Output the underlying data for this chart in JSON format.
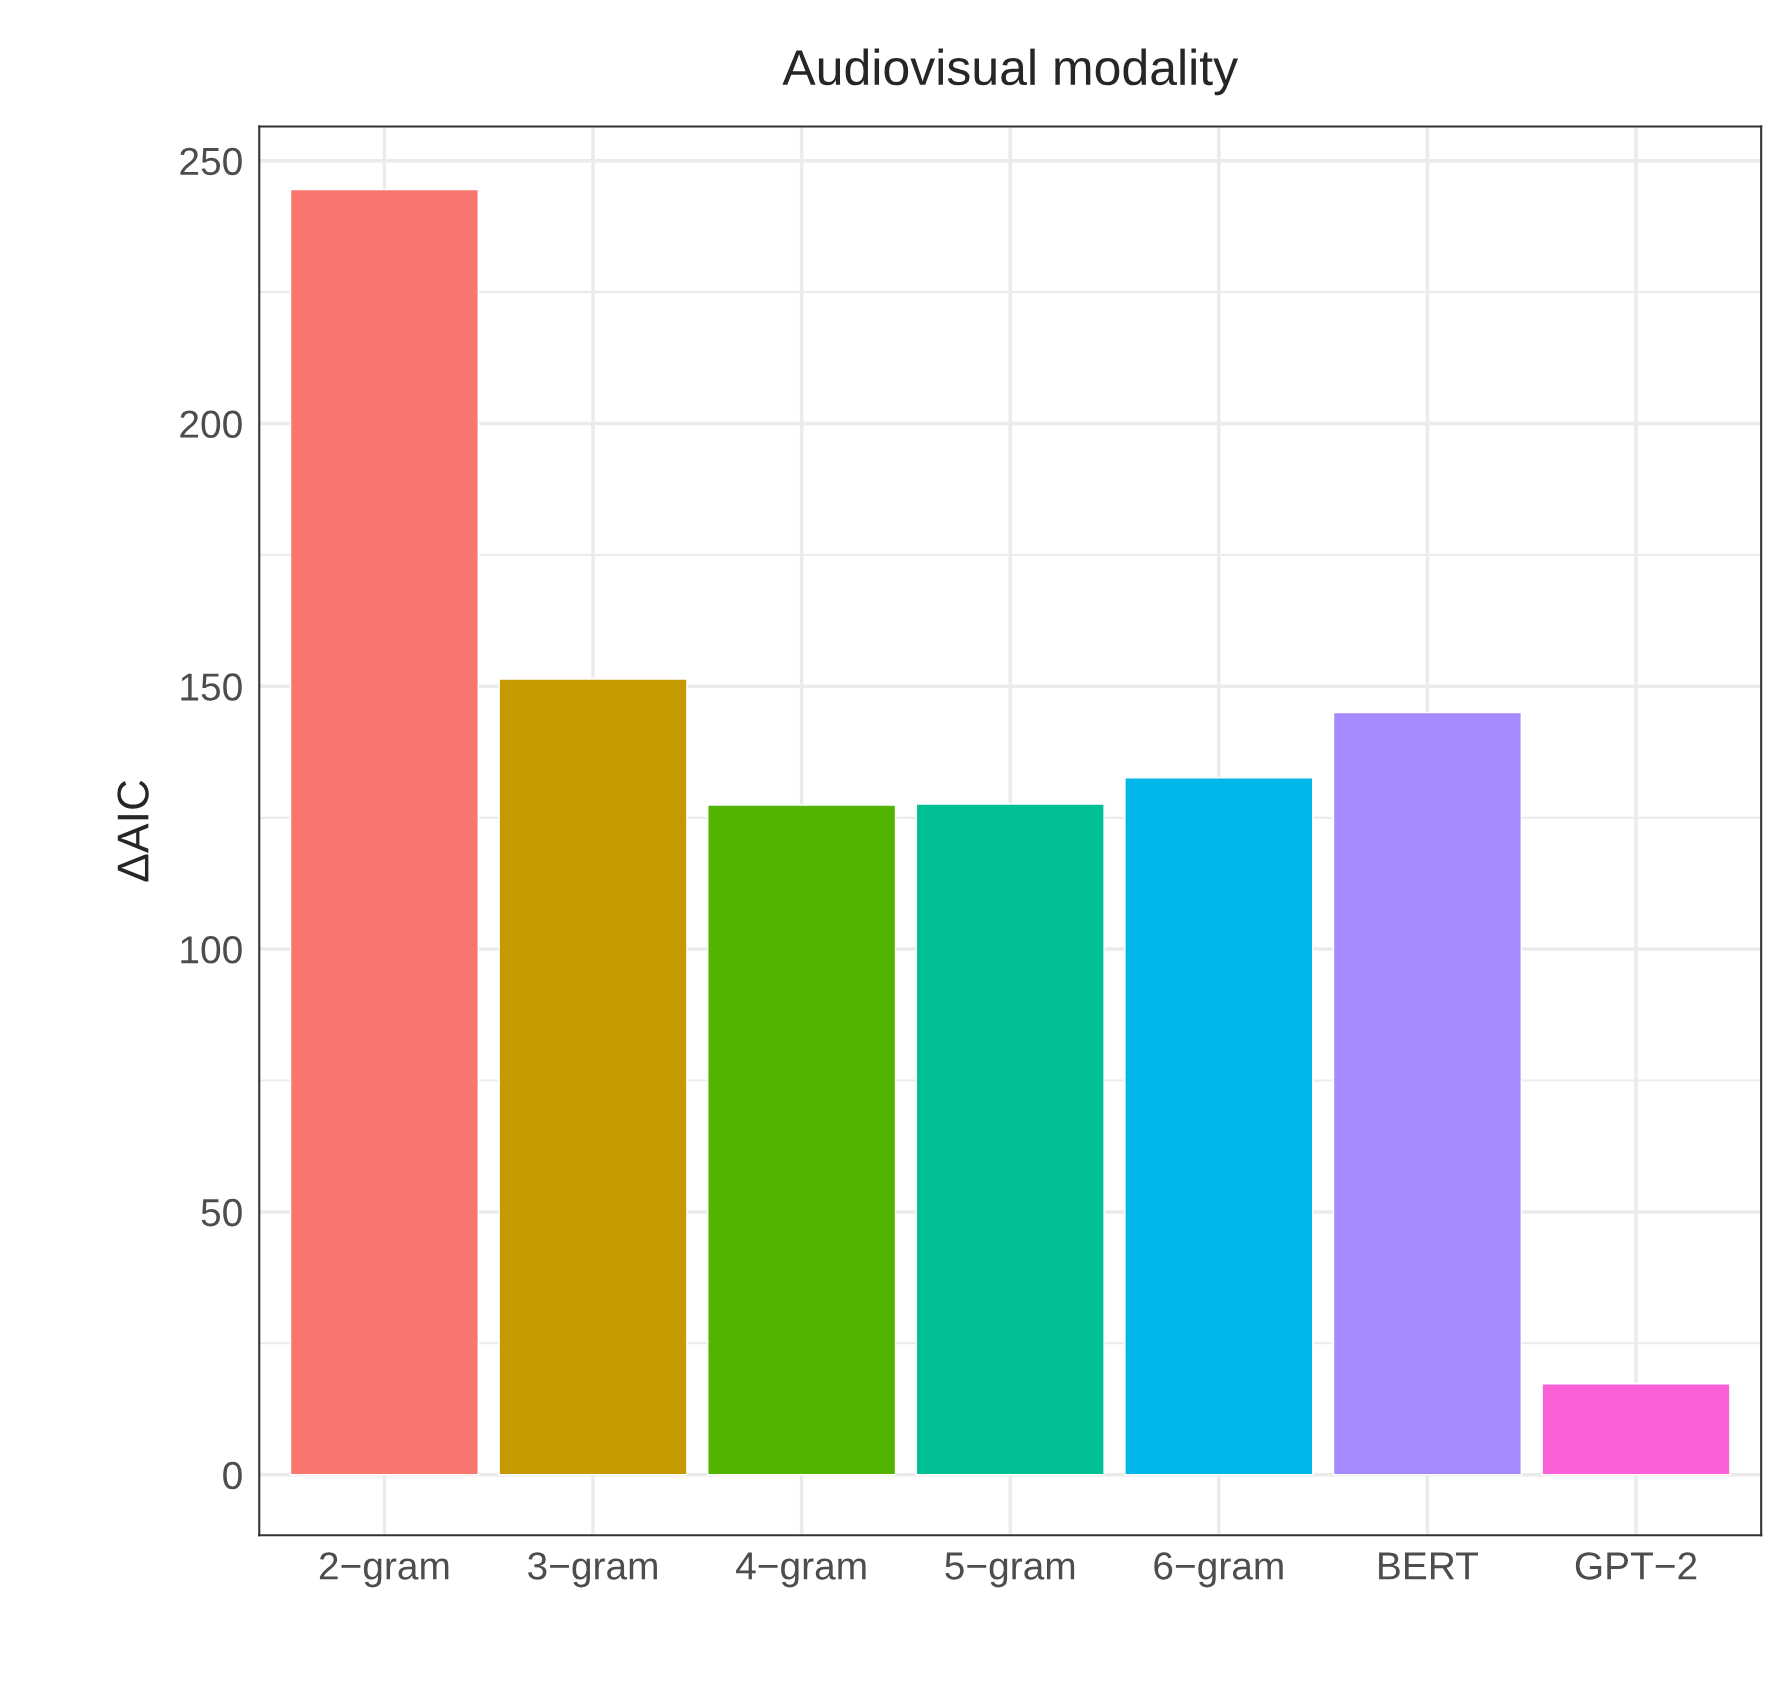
{
  "chart_data": {
    "type": "bar",
    "title": "Audiovisual modality",
    "ylabel": "ΔAIC",
    "categories": [
      "2−gram",
      "3−gram",
      "4−gram",
      "5−gram",
      "6−gram",
      "BERT",
      "GPT−2"
    ],
    "values": [
      244.5,
      151.4,
      127.4,
      127.6,
      132.6,
      145,
      17.3
    ],
    "colors": [
      "#f8766d",
      "#c49a00",
      "#53b400",
      "#00c094",
      "#00b6eb",
      "#a58aff",
      "#fb61d7"
    ],
    "ylim": [
      -11.5,
      256.5
    ],
    "yticks": [
      0,
      50,
      100,
      150,
      200,
      250
    ],
    "grid": true
  }
}
